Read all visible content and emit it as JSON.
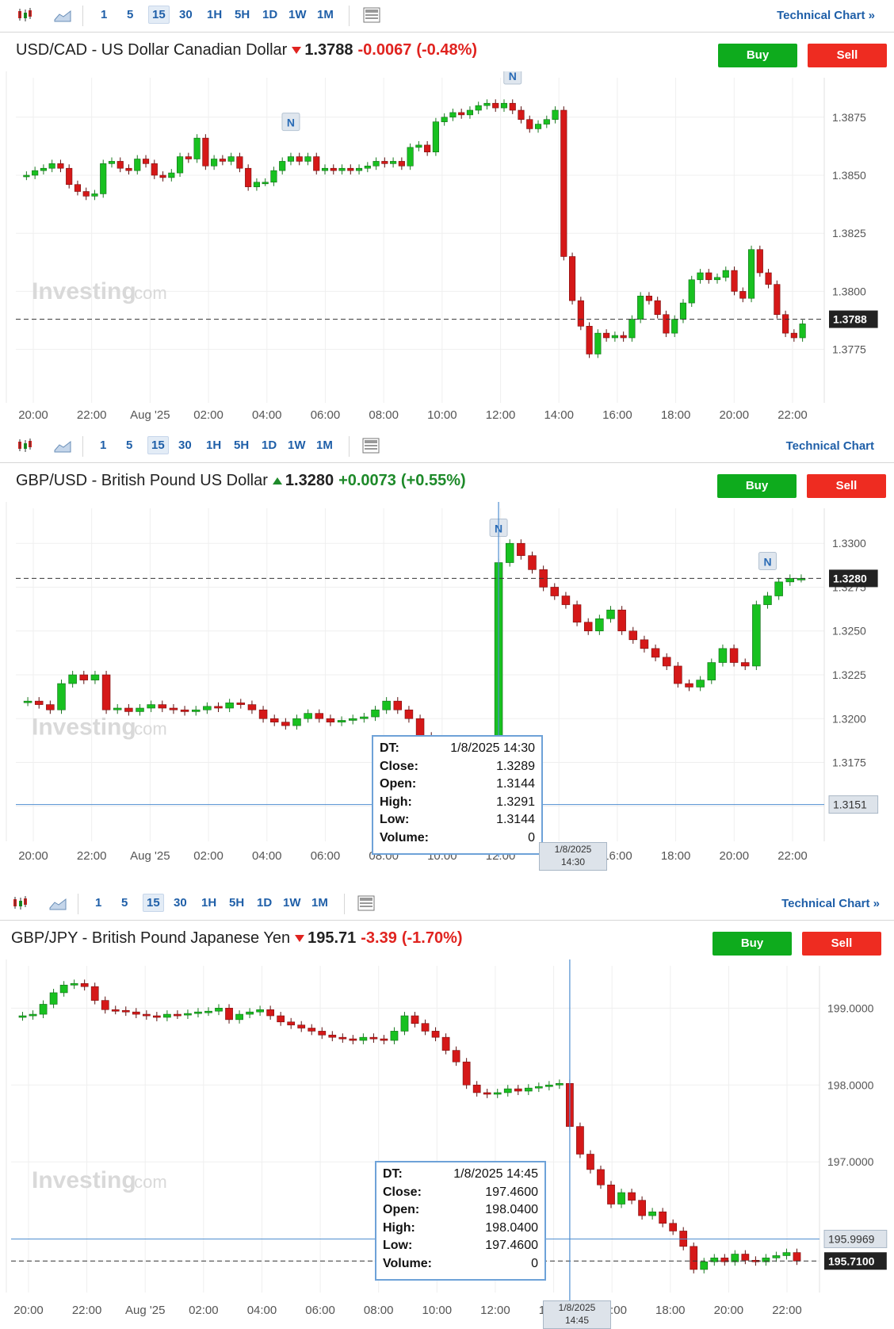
{
  "toolbar": {
    "intervals": [
      "1",
      "5",
      "15",
      "30",
      "1H",
      "5H",
      "1D",
      "1W",
      "1M"
    ],
    "active_interval": "15",
    "technical_chart_label": "Technical Chart",
    "technical_chart_suffix": "»"
  },
  "buttons": {
    "buy": "Buy",
    "sell": "Sell"
  },
  "watermark": {
    "brand": "Investing",
    "suffix": ".com"
  },
  "panels": [
    {
      "title": "USD/CAD - US Dollar Canadian Dollar",
      "price": "1.3788",
      "change": "-0.0067",
      "change_pct": "(-0.48%)",
      "direction": "down",
      "current_label": "1.3788",
      "news_markers": [
        "N",
        "N"
      ]
    },
    {
      "title": "GBP/USD - British Pound US Dollar",
      "price": "1.3280",
      "change": "+0.0073",
      "change_pct": "(+0.55%)",
      "direction": "up",
      "current_label": "1.3280",
      "crosshair_label": "1.3151",
      "crosshair_time": [
        "1/8/2025",
        "14:30"
      ],
      "news_markers": [
        "N",
        "N"
      ],
      "tooltip": {
        "labels": [
          "DT:",
          "Close:",
          "Open:",
          "High:",
          "Low:",
          "Volume:"
        ],
        "values": [
          "1/8/2025 14:30",
          "1.3289",
          "1.3144",
          "1.3291",
          "1.3144",
          "0"
        ]
      }
    },
    {
      "title": "GBP/JPY - British Pound Japanese Yen",
      "price": "195.71",
      "change": "-3.39",
      "change_pct": "(-1.70%)",
      "direction": "down",
      "current_label": "195.7100",
      "crosshair_label": "195.9969",
      "crosshair_time": [
        "1/8/2025",
        "14:45"
      ],
      "tooltip": {
        "labels": [
          "DT:",
          "Close:",
          "Open:",
          "High:",
          "Low:",
          "Volume:"
        ],
        "values": [
          "1/8/2025 14:45",
          "197.4600",
          "198.0400",
          "198.0400",
          "197.4600",
          "0"
        ]
      }
    }
  ],
  "chart_data": [
    {
      "type": "candlestick",
      "title": "USD/CAD - US Dollar Canadian Dollar",
      "xticks": [
        "20:00",
        "22:00",
        "Aug '25",
        "02:00",
        "04:00",
        "06:00",
        "08:00",
        "10:00",
        "12:00",
        "14:00",
        "16:00",
        "18:00",
        "20:00",
        "22:00"
      ],
      "yticks": [
        "1.3875",
        "1.3850",
        "1.3825",
        "1.3800",
        "1.3775"
      ],
      "ylim": [
        1.3752,
        1.3892
      ],
      "current": 1.3788,
      "close_series": [
        1.385,
        1.3852,
        1.3853,
        1.3855,
        1.3853,
        1.3846,
        1.3843,
        1.3841,
        1.3842,
        1.3855,
        1.3856,
        1.3853,
        1.3852,
        1.3857,
        1.3855,
        1.385,
        1.3849,
        1.3851,
        1.3858,
        1.3857,
        1.3866,
        1.3854,
        1.3857,
        1.3856,
        1.3858,
        1.3853,
        1.3845,
        1.3847,
        1.3847,
        1.3852,
        1.3856,
        1.3858,
        1.3856,
        1.3858,
        1.3852,
        1.3853,
        1.3852,
        1.3853,
        1.3852,
        1.3853,
        1.3854,
        1.3856,
        1.3855,
        1.3856,
        1.3854,
        1.3862,
        1.3863,
        1.386,
        1.3873,
        1.3875,
        1.3877,
        1.3876,
        1.3878,
        1.388,
        1.3881,
        1.3879,
        1.3881,
        1.3878,
        1.3874,
        1.387,
        1.3872,
        1.3874,
        1.3878,
        1.3815,
        1.3796,
        1.3785,
        1.3773,
        1.3782,
        1.378,
        1.3781,
        1.378,
        1.3788,
        1.3798,
        1.3796,
        1.379,
        1.3782,
        1.3788,
        1.3795,
        1.3805,
        1.3808,
        1.3805,
        1.3806,
        1.3809,
        1.38,
        1.3797,
        1.3818,
        1.3808,
        1.3803,
        1.379,
        1.3782,
        1.378,
        1.3786
      ],
      "annotations": [
        "N",
        "N"
      ]
    },
    {
      "type": "candlestick",
      "title": "GBP/USD - British Pound US Dollar",
      "xticks": [
        "20:00",
        "22:00",
        "Aug '25",
        "02:00",
        "04:00",
        "06:00",
        "08:00",
        "10:00",
        "12:00",
        "14:00",
        "16:00",
        "18:00",
        "20:00",
        "22:00"
      ],
      "yticks": [
        "1.3300",
        "1.3275",
        "1.3250",
        "1.3225",
        "1.3200",
        "1.3175",
        "1.3150"
      ],
      "ylim": [
        1.313,
        1.332
      ],
      "current": 1.328,
      "crosshair_y": 1.3151,
      "close_series": [
        1.321,
        1.3208,
        1.3205,
        1.322,
        1.3225,
        1.3222,
        1.3225,
        1.3205,
        1.3206,
        1.3204,
        1.3206,
        1.3208,
        1.3206,
        1.3205,
        1.3204,
        1.3205,
        1.3207,
        1.3206,
        1.3209,
        1.3208,
        1.3205,
        1.32,
        1.3198,
        1.3196,
        1.32,
        1.3203,
        1.32,
        1.3198,
        1.3199,
        1.32,
        1.3201,
        1.3205,
        1.321,
        1.3205,
        1.32,
        1.319,
        1.3185,
        1.318,
        1.3175,
        1.317,
        1.3163,
        1.315,
        1.3289,
        1.33,
        1.3293,
        1.3285,
        1.3275,
        1.327,
        1.3265,
        1.3255,
        1.325,
        1.3257,
        1.3262,
        1.325,
        1.3245,
        1.324,
        1.3235,
        1.323,
        1.322,
        1.3218,
        1.3222,
        1.3232,
        1.324,
        1.3232,
        1.323,
        1.3265,
        1.327,
        1.3278,
        1.328,
        1.328
      ],
      "tooltip_candle": {
        "dt": "1/8/2025 14:30",
        "close": 1.3289,
        "open": 1.3144,
        "high": 1.3291,
        "low": 1.3144,
        "volume": 0
      }
    },
    {
      "type": "candlestick",
      "title": "GBP/JPY - British Pound Japanese Yen",
      "xticks": [
        "20:00",
        "22:00",
        "Aug '25",
        "02:00",
        "04:00",
        "06:00",
        "08:00",
        "10:00",
        "12:00",
        "14:00",
        "16:00",
        "18:00",
        "20:00",
        "22:00"
      ],
      "yticks": [
        "199.0000",
        "198.0000",
        "197.0000",
        "195.9969",
        "195.7100"
      ],
      "ylim": [
        195.3,
        199.55
      ],
      "current": 195.71,
      "crosshair_y": 195.9969,
      "close_series": [
        198.9,
        198.92,
        199.05,
        199.2,
        199.3,
        199.32,
        199.28,
        199.1,
        198.98,
        198.97,
        198.95,
        198.92,
        198.9,
        198.88,
        198.92,
        198.91,
        198.93,
        198.95,
        198.96,
        199.0,
        198.85,
        198.92,
        198.95,
        198.98,
        198.9,
        198.82,
        198.78,
        198.74,
        198.7,
        198.65,
        198.62,
        198.6,
        198.58,
        198.62,
        198.6,
        198.58,
        198.7,
        198.9,
        198.8,
        198.7,
        198.62,
        198.45,
        198.3,
        198.0,
        197.9,
        197.88,
        197.9,
        197.95,
        197.92,
        197.96,
        197.98,
        198.0,
        198.02,
        197.46,
        197.1,
        196.9,
        196.7,
        196.45,
        196.6,
        196.5,
        196.3,
        196.35,
        196.2,
        196.1,
        195.9,
        195.6,
        195.7,
        195.75,
        195.7,
        195.8,
        195.72,
        195.7,
        195.75,
        195.78,
        195.82,
        195.71
      ],
      "tooltip_candle": {
        "dt": "1/8/2025 14:45",
        "close": 197.46,
        "open": 198.04,
        "high": 198.04,
        "low": 197.46,
        "volume": 0
      }
    }
  ]
}
